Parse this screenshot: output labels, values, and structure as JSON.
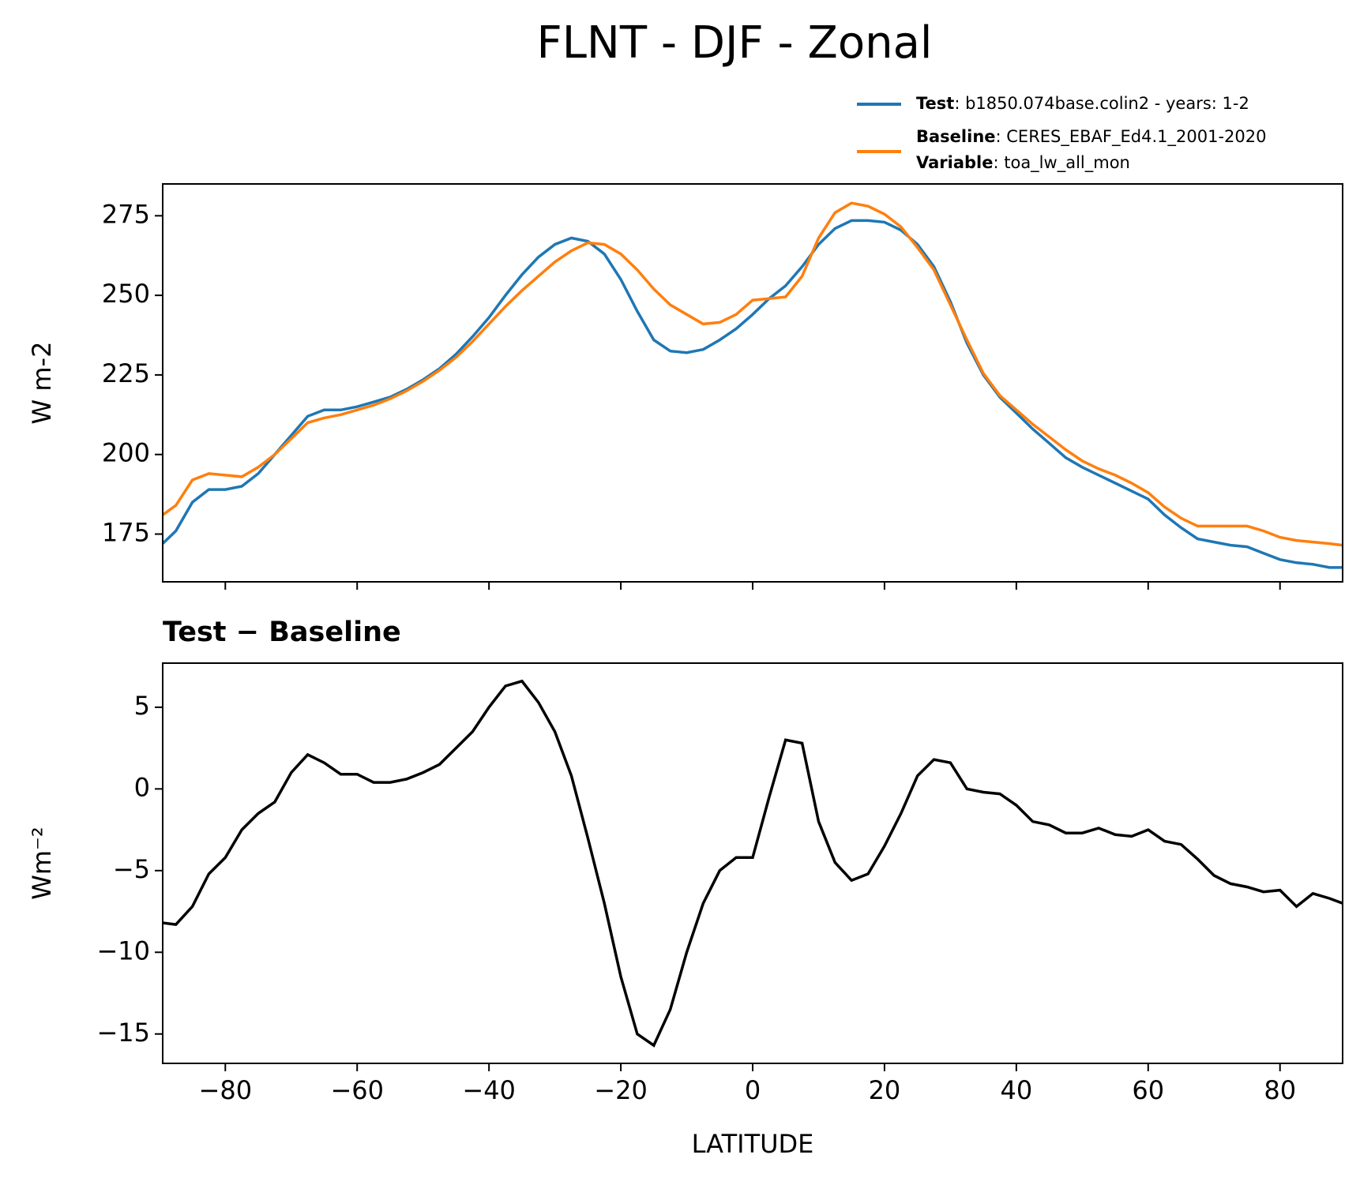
{
  "chart_data": [
    {
      "type": "line",
      "title": "FLNT - DJF - Zonal",
      "ylabel": "W m-2",
      "x": [
        -89.5,
        -87.5,
        -85,
        -82.5,
        -80,
        -77.5,
        -75,
        -72.5,
        -70,
        -67.5,
        -65,
        -62.5,
        -60,
        -57.5,
        -55,
        -52.5,
        -50,
        -47.5,
        -45,
        -42.5,
        -40,
        -37.5,
        -35,
        -32.5,
        -30,
        -27.5,
        -25,
        -22.5,
        -20,
        -17.5,
        -15,
        -12.5,
        -10,
        -7.5,
        -5,
        -2.5,
        0,
        2.5,
        5,
        7.5,
        10,
        12.5,
        15,
        17.5,
        20,
        22.5,
        25,
        27.5,
        30,
        32.5,
        35,
        37.5,
        40,
        42.5,
        45,
        47.5,
        50,
        52.5,
        55,
        57.5,
        60,
        62.5,
        65,
        67.5,
        70,
        72.5,
        75,
        77.5,
        80,
        82.5,
        85,
        87.5,
        89.5
      ],
      "series": [
        {
          "name": "Test",
          "description": ": b1850.074base.colin2 - years: 1-2",
          "color": "#1f77b4",
          "values": [
            172,
            176,
            185,
            189,
            189,
            190,
            194,
            200,
            206,
            212,
            214,
            214,
            215,
            216.5,
            218,
            220.5,
            223.5,
            227,
            231.5,
            237,
            243,
            250,
            256.5,
            262,
            266,
            268,
            267,
            263,
            255,
            245,
            236,
            232.5,
            232,
            233,
            236,
            239.5,
            244,
            249,
            253,
            259,
            266,
            271,
            273.5,
            273.5,
            273,
            270.5,
            266,
            259,
            248,
            235,
            225,
            218,
            213,
            208,
            203.5,
            199,
            196,
            193.5,
            191,
            188.5,
            186,
            181,
            177,
            173.5,
            172.5,
            171.5,
            171,
            169,
            167,
            166,
            165.5,
            164.5,
            164.5
          ]
        },
        {
          "name": "Baseline",
          "description": ": CERES_EBAF_Ed4.1_2001-2020",
          "color": "#ff7f0e",
          "values": [
            181,
            184,
            192,
            194,
            193.5,
            193,
            196,
            200,
            205,
            210,
            211.5,
            212.5,
            214,
            215.5,
            217.5,
            220,
            223,
            226.5,
            230.5,
            235.5,
            241,
            246.5,
            251.5,
            256,
            260.5,
            264,
            266.5,
            266,
            263,
            258,
            252,
            247,
            244,
            241,
            241.5,
            244,
            248.5,
            249,
            249.5,
            256,
            268,
            276,
            279,
            278,
            275.5,
            271.5,
            265,
            258,
            247,
            236,
            225.5,
            218.5,
            214,
            209.5,
            205.5,
            201.5,
            198,
            195.5,
            193.5,
            191,
            188,
            183.5,
            180,
            177.5,
            177.5,
            177.5,
            177.5,
            176,
            174,
            173,
            172.5,
            172,
            171.5
          ]
        }
      ],
      "legend_note": {
        "name": "Variable",
        "description": ": toa_lw_all_mon"
      },
      "xlim": [
        -89.5,
        89.5
      ],
      "xticks": [
        -80,
        -60,
        -40,
        -20,
        0,
        20,
        40,
        60,
        80
      ],
      "show_xtick_labels": false,
      "ylim": [
        160,
        285
      ],
      "yticks": [
        175,
        200,
        225,
        250,
        275
      ],
      "grid": false,
      "legend": "upper right"
    },
    {
      "type": "line",
      "title": "Test − Baseline",
      "ylabel": "Wm⁻²",
      "xlabel": "LATITUDE",
      "x": [
        -89.5,
        -87.5,
        -85,
        -82.5,
        -80,
        -77.5,
        -75,
        -72.5,
        -70,
        -67.5,
        -65,
        -62.5,
        -60,
        -57.5,
        -55,
        -52.5,
        -50,
        -47.5,
        -45,
        -42.5,
        -40,
        -37.5,
        -35,
        -32.5,
        -30,
        -27.5,
        -25,
        -22.5,
        -20,
        -17.5,
        -15,
        -12.5,
        -10,
        -7.5,
        -5,
        -2.5,
        0,
        2.5,
        5,
        7.5,
        10,
        12.5,
        15,
        17.5,
        20,
        22.5,
        25,
        27.5,
        30,
        32.5,
        35,
        37.5,
        40,
        42.5,
        45,
        47.5,
        50,
        52.5,
        55,
        57.5,
        60,
        62.5,
        65,
        67.5,
        70,
        72.5,
        75,
        77.5,
        80,
        82.5,
        85,
        87.5,
        89.5
      ],
      "series": [
        {
          "color": "#000000",
          "values": [
            -8.2,
            -8.3,
            -7.2,
            -5.2,
            -4.2,
            -2.5,
            -1.5,
            -0.8,
            1.0,
            2.1,
            1.6,
            0.9,
            0.9,
            0.4,
            0.4,
            0.6,
            1.0,
            1.5,
            2.5,
            3.5,
            5.0,
            6.3,
            6.6,
            5.3,
            3.5,
            0.8,
            -3.0,
            -7.0,
            -11.5,
            -15.0,
            -15.7,
            -13.5,
            -10.0,
            -7.0,
            -5.0,
            -4.2,
            -4.2,
            -0.5,
            3.0,
            2.8,
            -2.0,
            -4.5,
            -5.6,
            -5.2,
            -3.5,
            -1.5,
            0.8,
            1.8,
            1.6,
            0.0,
            -0.2,
            -0.3,
            -1.0,
            -2.0,
            -2.2,
            -2.7,
            -2.7,
            -2.4,
            -2.8,
            -2.9,
            -2.5,
            -3.2,
            -3.4,
            -4.3,
            -5.3,
            -5.8,
            -6.0,
            -6.3,
            -6.2,
            -7.2,
            -6.4,
            -6.7,
            -7.0
          ]
        }
      ],
      "xlim": [
        -89.5,
        89.5
      ],
      "xticks": [
        {
          "value": -80,
          "label": "−80"
        },
        {
          "value": -60,
          "label": "−60"
        },
        {
          "value": -40,
          "label": "−40"
        },
        {
          "value": -20,
          "label": "−20"
        },
        0,
        20,
        40,
        60,
        80
      ],
      "show_xtick_labels": true,
      "ylim": [
        -16.8,
        7.7
      ],
      "yticks": [
        5,
        0,
        {
          "value": -5,
          "label": "−5"
        },
        {
          "value": -10,
          "label": "−10"
        },
        {
          "value": -15,
          "label": "−15"
        }
      ],
      "grid": false
    }
  ]
}
